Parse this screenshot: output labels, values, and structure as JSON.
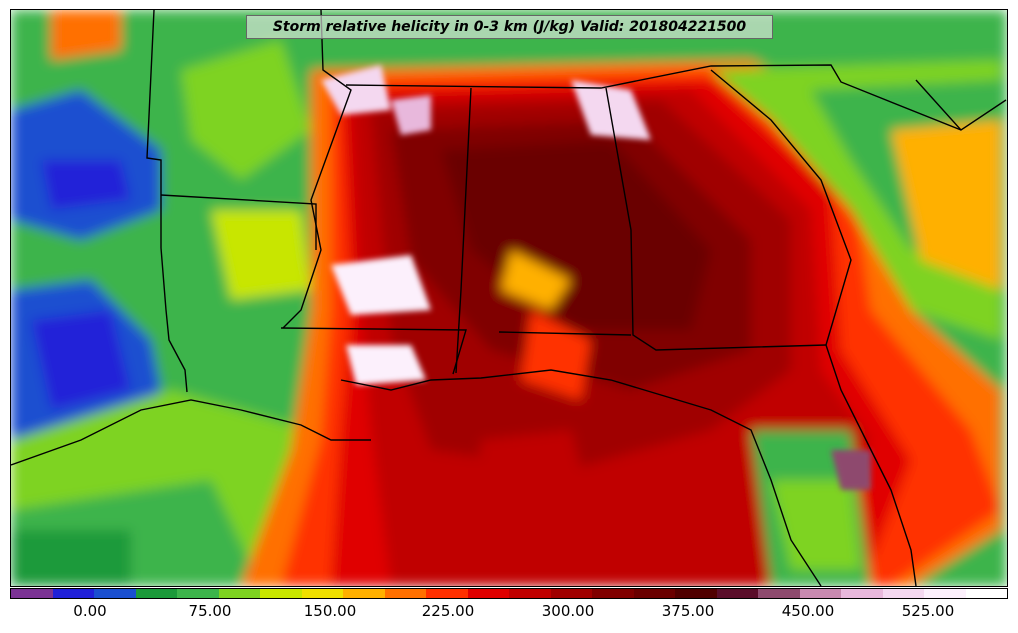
{
  "title": "Storm relative helicity in 0-3 km (J/kg) Valid: 201804221500",
  "colorbar": {
    "colors": [
      "#7b3294",
      "#2020d8",
      "#1a4fd0",
      "#1b9a3a",
      "#3cb44b",
      "#7ed321",
      "#c8e600",
      "#f0e000",
      "#ffb000",
      "#ff7000",
      "#ff3000",
      "#e00000",
      "#c00000",
      "#a00000",
      "#800000",
      "#6a0000",
      "#500000",
      "#5a0d2a",
      "#8e4a6e",
      "#c88ab0",
      "#e8b8dc",
      "#f4d8f0",
      "#fcf0fc",
      "#ffffff"
    ],
    "ticks": [
      "0.00",
      "75.00",
      "150.00",
      "225.00",
      "300.00",
      "375.00",
      "450.00",
      "525.00"
    ]
  }
}
